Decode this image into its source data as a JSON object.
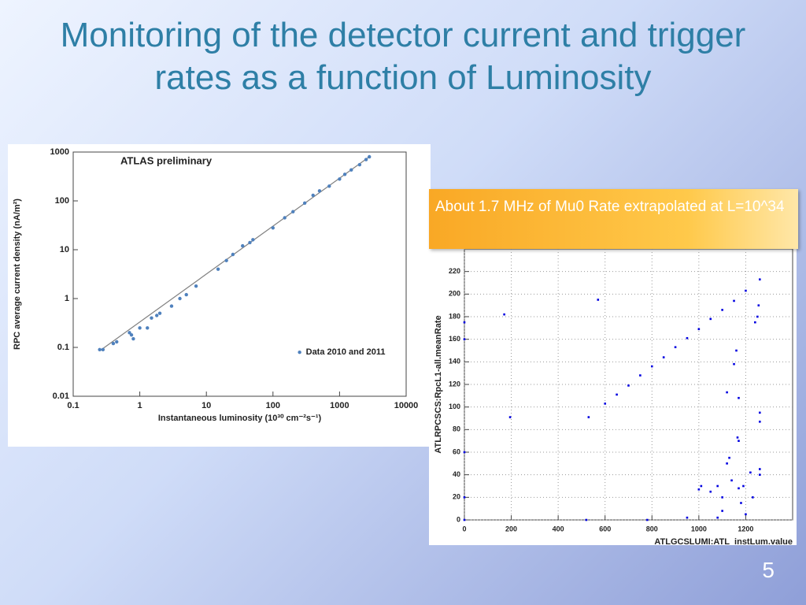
{
  "title": "Monitoring of the detector current and trigger rates as a function of Luminosity",
  "callout": "About 1.7 MHz of Mu0 Rate extrapolated at L=10^34",
  "page_number": "5",
  "chart_data": [
    {
      "type": "scatter",
      "annotation": "ATLAS preliminary",
      "x_label": "Instantaneous luminosity (10³⁰ cm⁻²s⁻¹)",
      "y_label": "RPC average current density (nA/m²)",
      "x_log": true,
      "y_log": true,
      "grid": false,
      "legend": "center-right",
      "xlim": [
        0.1,
        10000
      ],
      "ylim": [
        0.01,
        1000
      ],
      "xticks": [
        0.1,
        1,
        10,
        100,
        1000,
        10000
      ],
      "yticks": [
        0.01,
        0.1,
        1,
        10,
        100,
        1000
      ],
      "series": [
        {
          "name": "Data 2010 and 2011",
          "color": "#4f81bd",
          "x": [
            0.25,
            0.28,
            0.4,
            0.45,
            0.7,
            0.75,
            0.8,
            1.0,
            1.3,
            1.5,
            1.8,
            2,
            3,
            4,
            5,
            7,
            15,
            20,
            25,
            35,
            45,
            50,
            100,
            150,
            200,
            300,
            400,
            500,
            700,
            1000,
            1200,
            1500,
            2000,
            2500,
            2800
          ],
          "values": [
            0.09,
            0.09,
            0.12,
            0.13,
            0.2,
            0.18,
            0.15,
            0.25,
            0.25,
            0.4,
            0.45,
            0.5,
            0.7,
            1.0,
            1.2,
            1.8,
            4,
            6,
            8,
            12,
            14,
            16,
            28,
            45,
            60,
            90,
            130,
            160,
            200,
            280,
            350,
            430,
            550,
            700,
            800
          ]
        }
      ],
      "fit_line": {
        "color": "#808080",
        "x": [
          0.25,
          2800
        ],
        "values": [
          0.085,
          800
        ]
      }
    },
    {
      "type": "scatter",
      "x_label": "ATLGCSLUMI:ATL_instLum.value",
      "y_label": "ATLRPCSCS:RpcL1-all.meanRate",
      "x_log": false,
      "y_log": false,
      "grid": true,
      "xlim": [
        0,
        1400
      ],
      "ylim": [
        0,
        240
      ],
      "xticks": [
        0,
        200,
        400,
        600,
        800,
        1000,
        1200
      ],
      "yticks": [
        0,
        20,
        40,
        60,
        80,
        100,
        120,
        140,
        160,
        180,
        200,
        220
      ],
      "color": "#0000e0",
      "x": [
        530,
        600,
        650,
        700,
        750,
        800,
        850,
        900,
        950,
        1000,
        1050,
        1100,
        1150,
        1200,
        1260,
        0,
        0,
        0,
        0,
        0,
        170,
        195,
        570,
        1240,
        1250,
        1255,
        1260,
        1260,
        1260,
        1260,
        1150,
        1160,
        1170,
        1165,
        1170,
        1120,
        1130,
        1140,
        1100,
        1080,
        1050,
        1010,
        1000,
        1080,
        1200,
        1220,
        1230,
        1190,
        1170,
        780,
        520,
        950,
        1100,
        1180,
        1120
      ],
      "values": [
        91,
        103,
        111,
        119,
        128,
        136,
        144,
        153,
        161,
        169,
        178,
        186,
        194,
        203,
        213,
        175,
        160,
        60,
        20,
        0,
        182,
        91,
        195,
        175,
        180,
        190,
        95,
        87,
        45,
        40,
        138,
        150,
        108,
        73,
        70,
        113,
        55,
        35,
        20,
        30,
        25,
        30,
        27,
        2,
        5,
        42,
        20,
        30,
        28,
        0,
        0,
        2,
        8,
        15,
        50
      ]
    }
  ]
}
